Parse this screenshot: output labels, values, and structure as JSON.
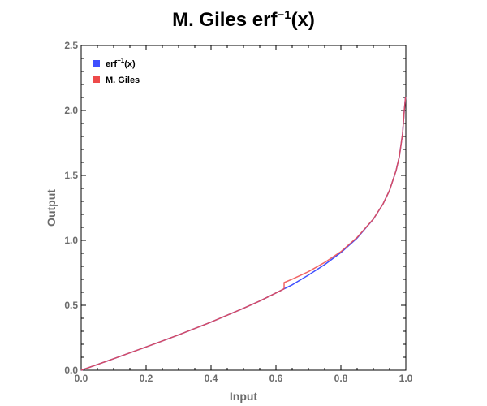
{
  "chart_data": {
    "type": "line",
    "title": "M. Giles erf⁻¹(x)",
    "title_main": "M. Giles erf",
    "title_sup": "−1",
    "title_tail": "(x)",
    "xlabel": "Input",
    "ylabel": "Output",
    "xlim": [
      0.0,
      1.0
    ],
    "ylim": [
      0.0,
      2.5
    ],
    "xticks": [
      "0.0",
      "0.2",
      "0.4",
      "0.6",
      "0.8",
      "1.0"
    ],
    "yticks": [
      "0.0",
      "0.5",
      "1.0",
      "1.5",
      "2.0",
      "2.5"
    ],
    "grid": false,
    "legend_position": "top-left",
    "series": [
      {
        "name": "erf⁻¹(x)",
        "legend_main": "erf",
        "legend_sup": "−1",
        "legend_tail": "(x)",
        "color": "#3f4fff",
        "x": [
          0.0,
          0.05,
          0.1,
          0.15,
          0.2,
          0.25,
          0.3,
          0.35,
          0.4,
          0.45,
          0.5,
          0.55,
          0.6,
          0.625,
          0.65,
          0.7,
          0.75,
          0.8,
          0.85,
          0.9,
          0.93,
          0.95,
          0.97,
          0.98,
          0.99,
          0.995,
          0.999
        ],
        "y": [
          0.0,
          0.0444,
          0.0889,
          0.1338,
          0.1791,
          0.2253,
          0.2725,
          0.3213,
          0.3708,
          0.4236,
          0.4769,
          0.5334,
          0.5951,
          0.6268,
          0.6576,
          0.7329,
          0.8134,
          0.9062,
          1.0179,
          1.1631,
          1.2812,
          1.3859,
          1.5376,
          1.645,
          1.8214,
          1.9945,
          2.1
        ]
      },
      {
        "name": "M. Giles",
        "color": "#ee4a4a",
        "x": [
          0.0,
          0.05,
          0.1,
          0.15,
          0.2,
          0.25,
          0.3,
          0.35,
          0.4,
          0.45,
          0.5,
          0.55,
          0.6,
          0.625,
          0.6251,
          0.65,
          0.7,
          0.75,
          0.8,
          0.85,
          0.9,
          0.93,
          0.95,
          0.97,
          0.98,
          0.99,
          0.995,
          0.999
        ],
        "y": [
          0.0,
          0.0444,
          0.0889,
          0.1338,
          0.1791,
          0.2253,
          0.2725,
          0.3213,
          0.3708,
          0.4236,
          0.4769,
          0.5334,
          0.5951,
          0.6268,
          0.675,
          0.701,
          0.759,
          0.83,
          0.913,
          1.023,
          1.164,
          1.2812,
          1.3859,
          1.5376,
          1.645,
          1.8214,
          1.9945,
          2.1
        ]
      }
    ]
  }
}
